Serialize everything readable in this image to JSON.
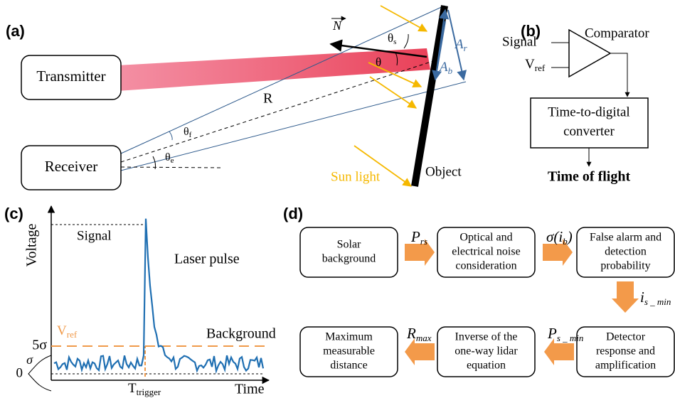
{
  "panel_a": {
    "label": "(a)",
    "transmitter": "Transmitter",
    "receiver": "Receiver",
    "range": "R",
    "theta_f": {
      "base": "θ",
      "sub": "f"
    },
    "theta_e": {
      "base": "θ",
      "sub": "e"
    },
    "theta": "θ",
    "theta_s": {
      "base": "θ",
      "sub": "s"
    },
    "normal": "N",
    "a_r": {
      "base": "A",
      "sub": "r"
    },
    "a_b": {
      "base": "A",
      "sub": "b"
    },
    "sun": "Sun light",
    "object": "Object"
  },
  "panel_b": {
    "label": "(b)",
    "signal": "Signal",
    "vref": {
      "base": "V",
      "sub": "ref"
    },
    "comparator": "Comparator",
    "tdc": [
      "Time-to-digital",
      "converter"
    ],
    "output": "Time of flight"
  },
  "panel_c": {
    "label": "(c)",
    "y_label": "Voltage",
    "signal": "Signal",
    "pulse": "Laser pulse",
    "vref": {
      "base": "V",
      "sub": "ref"
    },
    "five_sigma": "5σ",
    "sigma": "σ",
    "zero": "0",
    "background": "Background",
    "trigger": {
      "base": "T",
      "sub": "trigger"
    },
    "x_label": "Time"
  },
  "panel_d": {
    "label": "(d)",
    "boxes": [
      [
        "Solar",
        "background"
      ],
      [
        "Optical and",
        "electrical noise",
        "consideration"
      ],
      [
        "False alarm and",
        "detection",
        "probability"
      ],
      [
        "Detector",
        "response and",
        "amplification"
      ],
      [
        "Inverse of the",
        "one-way lidar",
        "equation"
      ],
      [
        "Maximum",
        "measurable",
        "distance"
      ]
    ],
    "arrows": [
      {
        "base": "P",
        "sub": "rs"
      },
      {
        "base": "σ(i",
        "sub": "b",
        "tail": ")"
      },
      {
        "base": "i",
        "sub": "s _ min"
      },
      {
        "base": "P",
        "sub": "s _ min"
      },
      {
        "base": "R",
        "sub": "max"
      }
    ]
  }
}
